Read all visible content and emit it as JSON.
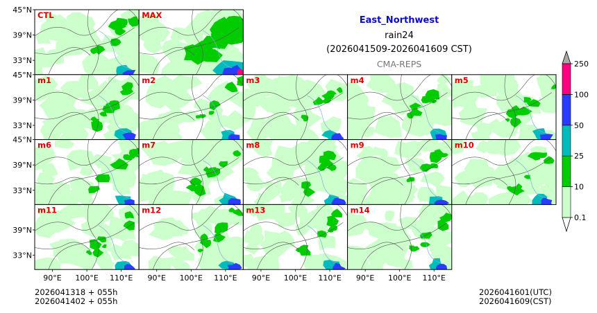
{
  "header": {
    "region": "East_Northwest",
    "variable": "rain24",
    "period": "(2026041509-2026041609 CST)",
    "model": "CMA-REPS"
  },
  "footer": {
    "left_line1": "2026041318  +  055h",
    "left_line2": "2026041402  +  055h",
    "right_line1": "2026041601(UTC)",
    "right_line2": "2026041609(CST)"
  },
  "chart_data": {
    "type": "heatmap",
    "title": "East_Northwest rain24",
    "panels": [
      [
        "CTL",
        "MAX",
        null,
        null,
        null
      ],
      [
        "m1",
        "m2",
        "m3",
        "m4",
        "m5"
      ],
      [
        "m6",
        "m7",
        "m8",
        "m9",
        "m10"
      ],
      [
        "m11",
        "m12",
        "m13",
        "m14",
        null
      ]
    ],
    "lon_ticks": [
      "90°E",
      "100°E",
      "110°E"
    ],
    "lat_ticks": [
      "45°N",
      "39°N",
      "33°N"
    ],
    "colorbar": {
      "levels": [
        0.1,
        10,
        25,
        50,
        100,
        250
      ],
      "labels": [
        "0.1",
        "10",
        "25",
        "50",
        "100",
        "250"
      ],
      "colors": [
        "#ccffcc",
        "#00cc00",
        "#00bbbb",
        "#2a3cff",
        "#ff0080"
      ],
      "under_color": "#ffffff",
      "over_color": "#a8a8a8"
    },
    "colors": {
      "panel_label": "#e00000",
      "light_rain": "#ccffcc",
      "moderate_rain": "#00cc00",
      "heavy_rain": "#00bbbb",
      "rainstorm": "#2a3cff",
      "border_line": "#555555"
    }
  }
}
